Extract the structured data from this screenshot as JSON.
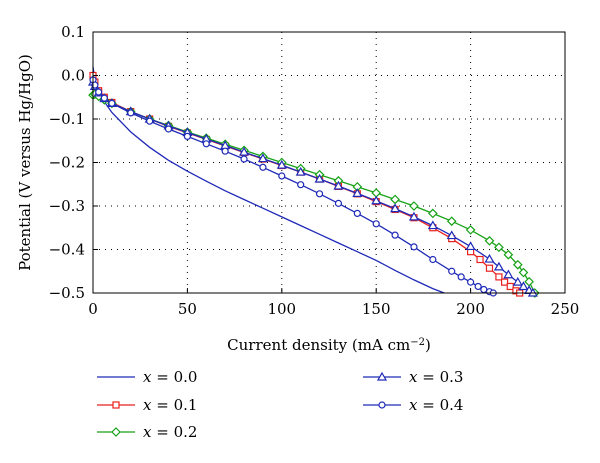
{
  "chart_data": {
    "type": "line",
    "title": "",
    "xlabel": "Current density (mA cm",
    "xlabel_sup": "−2",
    "xlabel_tail": ")",
    "ylabel": "Potential (V versus Hg/HgO)",
    "xlim": [
      0,
      250
    ],
    "ylim": [
      -0.5,
      0.1
    ],
    "xticks": [
      0,
      50,
      100,
      150,
      200,
      250
    ],
    "xtick_labels": [
      "0",
      "50",
      "100",
      "150",
      "200",
      "250"
    ],
    "yticks": [
      0.1,
      0.0,
      -0.1,
      -0.2,
      -0.3,
      -0.4,
      -0.5
    ],
    "ytick_labels": [
      "0.1",
      "0.0",
      "−0.1",
      "−0.2",
      "−0.3",
      "−0.4",
      "−0.5"
    ],
    "grid": "dotted",
    "legend_position": "bottom",
    "series": [
      {
        "name": "x = 0.0",
        "label_var": "x",
        "label_rest": " = 0.0",
        "color": "#1f2ab8",
        "marker": "none",
        "x": [
          0,
          1,
          3,
          6,
          10,
          20,
          30,
          40,
          50,
          60,
          70,
          80,
          90,
          100,
          110,
          120,
          130,
          140,
          150,
          160,
          170,
          180,
          186
        ],
        "y": [
          0.02,
          -0.01,
          -0.035,
          -0.06,
          -0.085,
          -0.13,
          -0.165,
          -0.195,
          -0.22,
          -0.243,
          -0.265,
          -0.285,
          -0.305,
          -0.325,
          -0.345,
          -0.365,
          -0.385,
          -0.405,
          -0.425,
          -0.448,
          -0.47,
          -0.49,
          -0.5
        ]
      },
      {
        "name": "x = 0.1",
        "label_var": "x",
        "label_rest": " = 0.1",
        "color": "#e8221e",
        "marker": "square",
        "x": [
          0,
          1,
          3,
          6,
          10,
          20,
          30,
          40,
          50,
          60,
          70,
          80,
          90,
          100,
          110,
          120,
          130,
          140,
          150,
          160,
          170,
          180,
          190,
          200,
          205,
          210,
          215,
          218,
          221,
          224,
          226
        ],
        "y": [
          0.0,
          -0.015,
          -0.035,
          -0.05,
          -0.062,
          -0.083,
          -0.1,
          -0.117,
          -0.132,
          -0.147,
          -0.162,
          -0.177,
          -0.192,
          -0.207,
          -0.222,
          -0.238,
          -0.255,
          -0.272,
          -0.29,
          -0.308,
          -0.327,
          -0.35,
          -0.375,
          -0.405,
          -0.423,
          -0.443,
          -0.463,
          -0.475,
          -0.485,
          -0.495,
          -0.5
        ]
      },
      {
        "name": "x = 0.2",
        "label_var": "x",
        "label_rest": " = 0.2",
        "color": "#17a216",
        "marker": "diamond",
        "x": [
          0,
          1,
          3,
          6,
          10,
          20,
          30,
          40,
          50,
          60,
          70,
          80,
          90,
          100,
          110,
          120,
          130,
          140,
          150,
          160,
          170,
          180,
          190,
          200,
          210,
          215,
          220,
          225,
          228,
          231,
          234
        ],
        "y": [
          -0.045,
          -0.043,
          -0.048,
          -0.056,
          -0.064,
          -0.083,
          -0.1,
          -0.115,
          -0.13,
          -0.144,
          -0.158,
          -0.172,
          -0.186,
          -0.2,
          -0.214,
          -0.228,
          -0.242,
          -0.256,
          -0.27,
          -0.285,
          -0.3,
          -0.317,
          -0.335,
          -0.355,
          -0.38,
          -0.395,
          -0.412,
          -0.435,
          -0.453,
          -0.474,
          -0.5
        ]
      },
      {
        "name": "x = 0.3",
        "label_var": "x",
        "label_rest": " = 0.3",
        "color": "#1f2ab8",
        "marker": "triangle",
        "x": [
          0,
          1,
          3,
          6,
          10,
          20,
          30,
          40,
          50,
          60,
          70,
          80,
          90,
          100,
          110,
          120,
          130,
          140,
          150,
          160,
          170,
          180,
          190,
          200,
          210,
          215,
          220,
          225,
          228,
          231,
          233
        ],
        "y": [
          -0.015,
          -0.025,
          -0.04,
          -0.053,
          -0.064,
          -0.083,
          -0.1,
          -0.116,
          -0.131,
          -0.146,
          -0.161,
          -0.176,
          -0.191,
          -0.206,
          -0.222,
          -0.238,
          -0.254,
          -0.271,
          -0.288,
          -0.306,
          -0.325,
          -0.345,
          -0.368,
          -0.393,
          -0.422,
          -0.44,
          -0.458,
          -0.475,
          -0.485,
          -0.494,
          -0.5
        ]
      },
      {
        "name": "x = 0.4",
        "label_var": "x",
        "label_rest": " = 0.4",
        "color": "#1f2ab8",
        "marker": "circle",
        "x": [
          0,
          1,
          3,
          6,
          10,
          20,
          30,
          40,
          50,
          60,
          70,
          80,
          90,
          100,
          110,
          120,
          130,
          140,
          150,
          160,
          170,
          180,
          190,
          195,
          200,
          204,
          207,
          210,
          212
        ],
        "y": [
          -0.01,
          -0.022,
          -0.038,
          -0.052,
          -0.064,
          -0.086,
          -0.105,
          -0.123,
          -0.14,
          -0.157,
          -0.174,
          -0.192,
          -0.211,
          -0.231,
          -0.251,
          -0.272,
          -0.294,
          -0.317,
          -0.341,
          -0.367,
          -0.394,
          -0.423,
          -0.45,
          -0.463,
          -0.475,
          -0.485,
          -0.492,
          -0.497,
          -0.5
        ]
      }
    ]
  }
}
